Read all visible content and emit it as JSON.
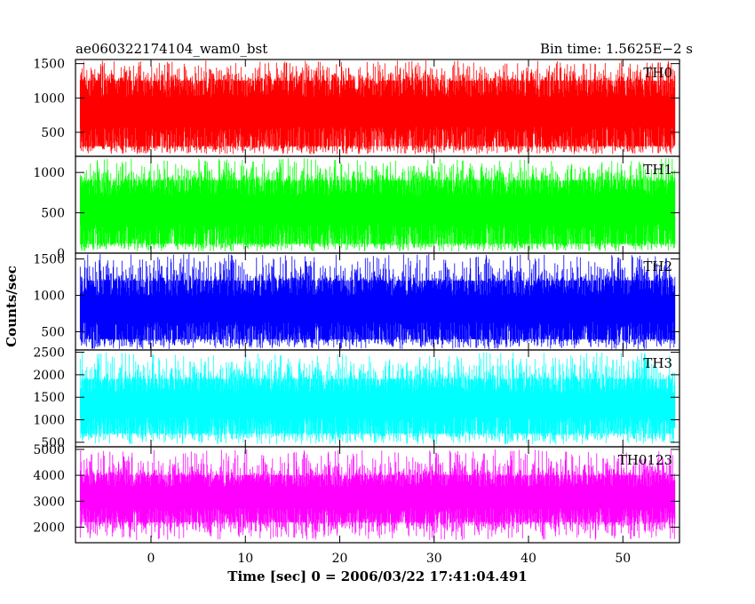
{
  "header": {
    "title": "ae060322174104_wam0_bst",
    "bin_time": "Bin time: 1.5625E−2 s"
  },
  "chart_data": {
    "type": "line",
    "xlabel": "Time [sec] 0 = 2006/03/22 17:41:04.491",
    "ylabel": "Counts/sec",
    "xlim": [
      -8,
      56
    ],
    "x_ticks": [
      0,
      10,
      20,
      30,
      40,
      50
    ],
    "bin_time_s": 0.015625,
    "grid": false,
    "panels": [
      {
        "name": "TH0",
        "color": "#ff0000",
        "ylim": [
          150,
          1560
        ],
        "y_ticks": [
          500,
          1000,
          1500
        ],
        "typical_range": [
          300,
          1250
        ],
        "min_approx": 180,
        "max_approx": 1550,
        "mean_approx": 770
      },
      {
        "name": "TH1",
        "color": "#00ff00",
        "ylim": [
          0,
          1200
        ],
        "y_ticks": [
          0,
          500,
          1000
        ],
        "typical_range": [
          120,
          900
        ],
        "min_approx": 20,
        "max_approx": 1180,
        "mean_approx": 520
      },
      {
        "name": "TH2",
        "color": "#0000ff",
        "ylim": [
          250,
          1580
        ],
        "y_ticks": [
          500,
          1000,
          1500
        ],
        "typical_range": [
          400,
          1200
        ],
        "min_approx": 260,
        "max_approx": 1570,
        "mean_approx": 790
      },
      {
        "name": "TH3",
        "color": "#00ffff",
        "ylim": [
          400,
          2550
        ],
        "y_ticks": [
          500,
          1000,
          1500,
          2000,
          2500
        ],
        "typical_range": [
          700,
          1900
        ],
        "min_approx": 450,
        "max_approx": 2500,
        "mean_approx": 1300
      },
      {
        "name": "TH0123",
        "color": "#ff00ff",
        "ylim": [
          1400,
          5100
        ],
        "y_ticks": [
          2000,
          3000,
          4000,
          5000
        ],
        "typical_range": [
          2200,
          4000
        ],
        "min_approx": 1500,
        "max_approx": 5000,
        "mean_approx": 3100
      }
    ]
  }
}
